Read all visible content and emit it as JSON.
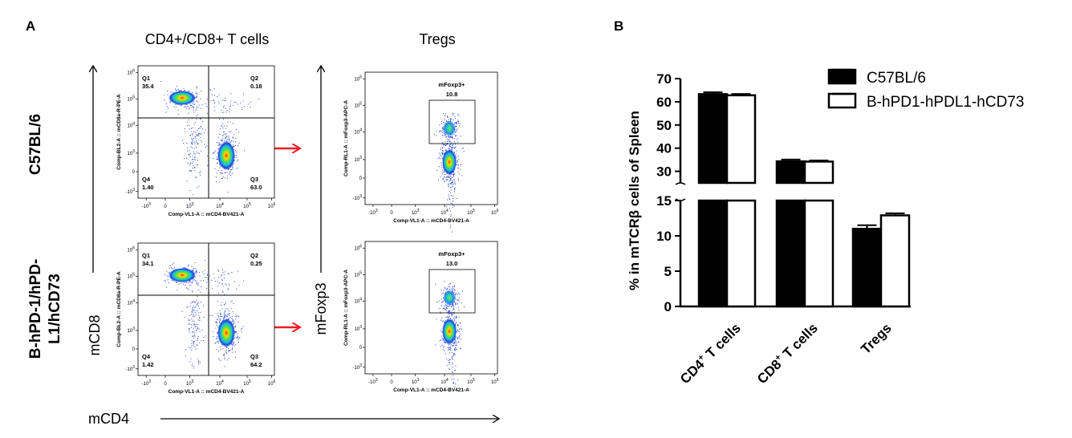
{
  "panel_a": {
    "label": "A",
    "col_titles": [
      "CD4+/CD8+ T cells",
      "Tregs"
    ],
    "row_labels": [
      [
        "C57BL/6"
      ],
      [
        "B-hPD-1/hPD-",
        "L1/hCD73"
      ]
    ],
    "y_axis_cd8": "mCD8",
    "y_axis_foxp3": "mFoxp3",
    "x_axis": "mCD4",
    "quad_xlabel": "Comp-VL1-A :: mCD4-BV421-A",
    "quad_ylabel": "Comp-BL2-A :: mCD8a-R-PE-A",
    "treg_xlabel": "Comp-VL1-A :: mCD4-BV421-A",
    "treg_ylabel": "Comp-RL1-A :: mFoxp3-APC-A",
    "x_ticks": [
      "-10",
      "0",
      "10",
      "10",
      "10"
    ],
    "x_tick_exps": [
      "3",
      "",
      "3",
      "4",
      "5"
    ],
    "x_tick_last": "10",
    "x_tick_last_exp": "6",
    "y_ticks": [
      "10",
      "10",
      "10",
      "0",
      "-10"
    ],
    "y_tick_exps": [
      "6",
      "5",
      "4",
      "3",
      "",
      "3"
    ],
    "quad_plots": [
      {
        "q1": "Q1",
        "q1v": "35.4",
        "q2": "Q2",
        "q2v": "0.18",
        "q3": "Q3",
        "q3v": "63.0",
        "q4": "Q4",
        "q4v": "1.40"
      },
      {
        "q1": "Q1",
        "q1v": "34.1",
        "q2": "Q2",
        "q2v": "0.25",
        "q3": "Q3",
        "q3v": "64.2",
        "q4": "Q4",
        "q4v": "1.42"
      }
    ],
    "treg_plots": [
      {
        "gate": "mFoxp3+",
        "value": "10.8"
      },
      {
        "gate": "mFoxp3+",
        "value": "13.0"
      }
    ],
    "arrow_color": "#ee1c24"
  },
  "panel_b": {
    "label": "B"
  },
  "chart_data": {
    "type": "bar",
    "categories": [
      "CD4+ T cells",
      "CD8+ T cells",
      "Tregs"
    ],
    "category_parts": [
      [
        "CD4",
        "+",
        " T cells"
      ],
      [
        "CD8",
        "+",
        " T cells"
      ],
      [
        "Tregs",
        "",
        ""
      ]
    ],
    "series": [
      {
        "name": "C57BL/6",
        "values": [
          63.3,
          34.3,
          11.0
        ],
        "errors": [
          0.8,
          0.8,
          0.5
        ],
        "fill": "#000000"
      },
      {
        "name": "B-hPD1-hPDL1-hCD73",
        "values": [
          62.8,
          34.2,
          12.9
        ],
        "errors": [
          0.6,
          0.5,
          0.3
        ],
        "fill": "#ffffff"
      }
    ],
    "ylabel": "% in mTCRβ cells of Spleen",
    "y_ticks_lower": [
      0,
      5,
      10,
      15
    ],
    "y_ticks_upper": [
      30,
      40,
      50,
      60,
      70
    ],
    "ylim_lower": [
      0,
      15
    ],
    "ylim_upper": [
      25,
      70
    ],
    "axis_break": true,
    "legend_position": "top-right"
  }
}
